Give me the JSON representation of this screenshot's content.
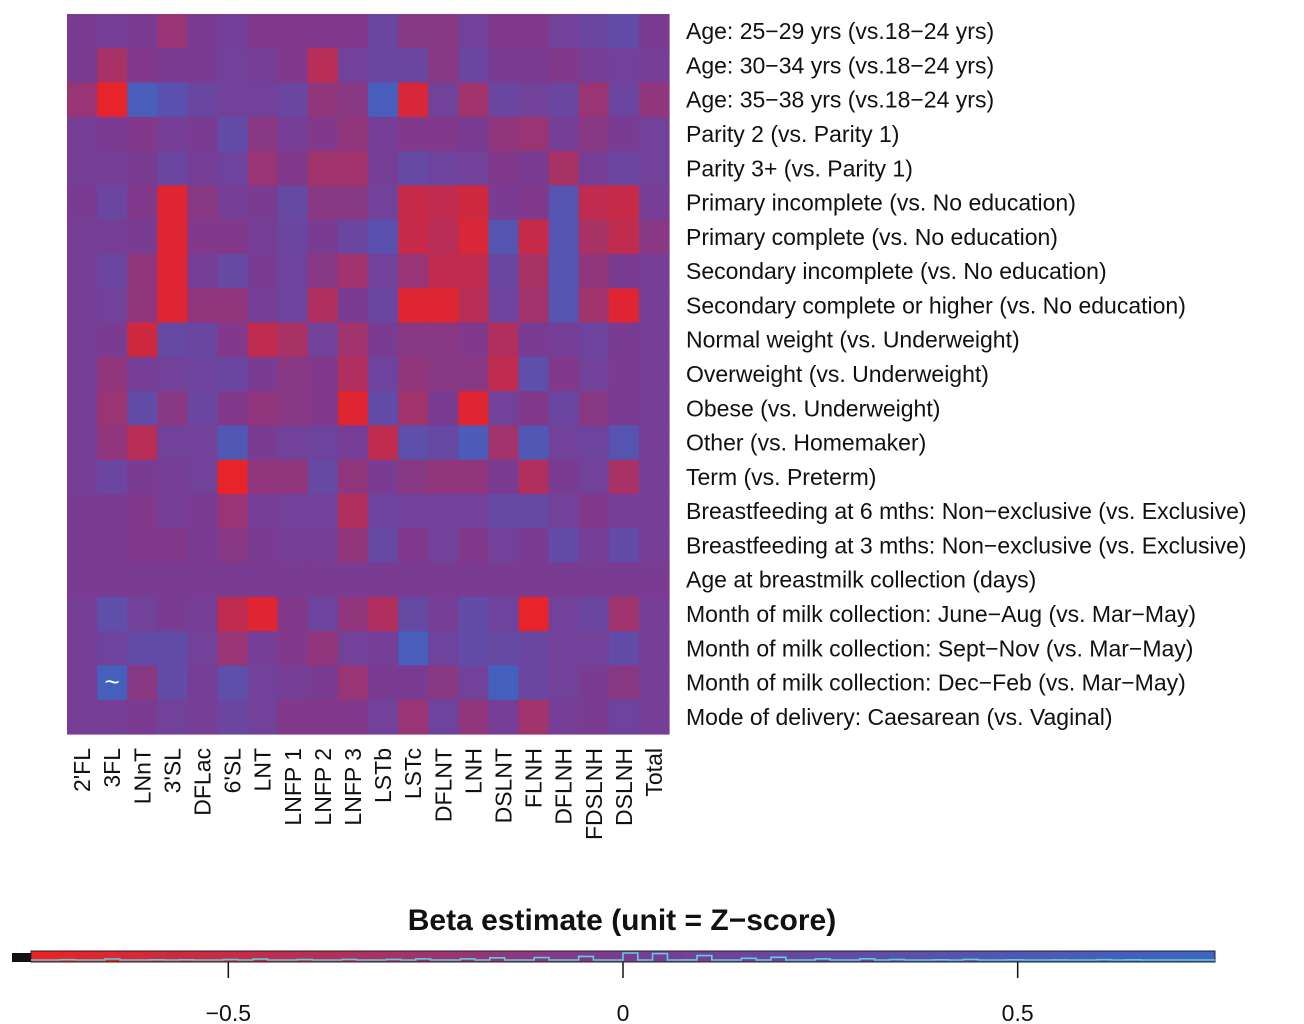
{
  "chart_data": {
    "type": "heatmap",
    "title": "",
    "xlabel": "",
    "ylabel": "",
    "columns": [
      "2'FL",
      "3FL",
      "LNnT",
      "3'SL",
      "DFLac",
      "6'SL",
      "LNT",
      "LNFP 1",
      "LNFP 2",
      "LNFP 3",
      "LSTb",
      "LSTc",
      "DFLNT",
      "LNH",
      "DSLNT",
      "FLNH",
      "DFLNH",
      "FDSLNH",
      "DSLNH",
      "Total"
    ],
    "rows": [
      "Age: 25−29 yrs (vs.18−24 yrs)",
      "Age: 30−34 yrs (vs.18−24 yrs)",
      "Age: 35−38 yrs (vs.18−24 yrs)",
      "Parity 2 (vs. Parity 1)",
      "Parity 3+ (vs. Parity 1)",
      "Primary incomplete (vs. No education)",
      "Primary complete (vs. No education)",
      "Secondary incomplete (vs. No education)",
      "Secondary complete or higher (vs. No education)",
      "Normal weight (vs. Underweight)",
      "Overweight (vs. Underweight)",
      "Obese (vs. Underweight)",
      "Other (vs. Homemaker)",
      "Term (vs. Preterm)",
      "Breastfeeding at 6 mths: Non−exclusive (vs. Exclusive)",
      "Breastfeeding at 3 mths: Non−exclusive (vs. Exclusive)",
      "Age at breastmilk collection (days)",
      "Month of milk collection: June−Aug (vs. Mar−May)",
      "Month of milk collection: Sept−Nov (vs. Mar−May)",
      "Month of milk collection: Dec−Feb (vs. Mar−May)",
      "Mode of delivery: Caesarean (vs. Vaginal)"
    ],
    "values": [
      [
        0.0,
        0.05,
        0.0,
        -0.2,
        0.0,
        0.08,
        -0.05,
        -0.05,
        -0.05,
        -0.05,
        0.2,
        -0.1,
        -0.1,
        0.1,
        -0.05,
        -0.05,
        0.1,
        0.2,
        0.3,
        0.0
      ],
      [
        0.0,
        -0.3,
        -0.05,
        0.0,
        0.0,
        0.1,
        0.05,
        -0.05,
        -0.4,
        0.1,
        0.2,
        0.2,
        -0.1,
        0.2,
        0.0,
        0.0,
        -0.05,
        0.05,
        0.1,
        0.05
      ],
      [
        -0.2,
        -0.7,
        0.6,
        0.4,
        0.2,
        0.1,
        0.1,
        0.2,
        -0.15,
        -0.1,
        0.6,
        -0.6,
        0.1,
        -0.25,
        0.2,
        0.1,
        0.2,
        -0.2,
        0.2,
        -0.15
      ],
      [
        0.05,
        0.0,
        -0.05,
        0.05,
        0.0,
        0.3,
        -0.1,
        0.05,
        -0.05,
        -0.15,
        0.05,
        -0.05,
        -0.05,
        0.0,
        -0.15,
        -0.2,
        0.05,
        -0.1,
        0.0,
        0.1
      ],
      [
        0.05,
        0.05,
        0.0,
        0.2,
        0.05,
        0.15,
        -0.2,
        -0.05,
        -0.25,
        -0.25,
        0.05,
        0.25,
        0.15,
        0.1,
        -0.05,
        0.0,
        -0.3,
        0.05,
        0.2,
        0.1
      ],
      [
        0.0,
        0.2,
        -0.05,
        -0.65,
        -0.1,
        0.05,
        0.0,
        0.25,
        -0.1,
        -0.1,
        0.1,
        -0.5,
        -0.45,
        -0.55,
        0.0,
        -0.05,
        0.45,
        -0.45,
        -0.5,
        0.05
      ],
      [
        0.05,
        0.05,
        0.0,
        -0.65,
        -0.05,
        -0.05,
        0.05,
        0.2,
        0.0,
        0.2,
        0.4,
        -0.5,
        -0.4,
        -0.6,
        0.45,
        -0.5,
        0.45,
        -0.3,
        -0.45,
        -0.1
      ],
      [
        0.05,
        0.2,
        -0.15,
        -0.65,
        0.05,
        0.25,
        0.0,
        0.15,
        -0.1,
        -0.25,
        0.1,
        -0.2,
        -0.45,
        -0.45,
        0.2,
        -0.3,
        0.45,
        -0.15,
        0.0,
        0.05
      ],
      [
        0.05,
        0.1,
        -0.15,
        -0.65,
        -0.15,
        -0.15,
        0.05,
        0.15,
        -0.35,
        0.0,
        0.2,
        -0.65,
        -0.65,
        -0.4,
        0.15,
        -0.25,
        0.45,
        -0.25,
        -0.65,
        0.05
      ],
      [
        0.05,
        0.0,
        -0.55,
        0.25,
        0.2,
        -0.05,
        -0.45,
        -0.3,
        0.1,
        -0.25,
        0.0,
        -0.1,
        -0.1,
        -0.05,
        -0.35,
        0.0,
        0.05,
        0.15,
        0.0,
        0.05
      ],
      [
        0.05,
        -0.15,
        0.05,
        0.1,
        0.15,
        0.2,
        0.0,
        -0.1,
        -0.05,
        -0.35,
        0.15,
        -0.15,
        -0.1,
        -0.1,
        -0.45,
        0.35,
        -0.05,
        0.1,
        0.0,
        0.05
      ],
      [
        0.05,
        -0.2,
        0.3,
        -0.1,
        0.2,
        -0.05,
        -0.15,
        -0.1,
        -0.05,
        -0.65,
        0.3,
        -0.25,
        0.0,
        -0.65,
        0.1,
        -0.05,
        0.2,
        -0.1,
        0.0,
        0.05
      ],
      [
        0.05,
        -0.15,
        -0.4,
        0.1,
        0.1,
        0.5,
        0.0,
        0.1,
        0.15,
        0.05,
        -0.45,
        0.35,
        0.25,
        0.55,
        -0.25,
        0.5,
        0.1,
        0.15,
        0.45,
        0.05
      ],
      [
        0.05,
        0.2,
        0.0,
        0.05,
        0.1,
        -0.7,
        -0.15,
        -0.15,
        0.25,
        -0.15,
        0.0,
        -0.1,
        -0.15,
        -0.15,
        0.0,
        -0.35,
        0.0,
        0.1,
        -0.3,
        0.05
      ],
      [
        0.0,
        0.0,
        -0.05,
        0.05,
        0.0,
        -0.2,
        0.05,
        0.1,
        0.1,
        -0.35,
        0.15,
        0.1,
        0.1,
        0.1,
        0.25,
        0.25,
        0.1,
        -0.05,
        0.05,
        0.05
      ],
      [
        0.0,
        0.0,
        -0.05,
        -0.05,
        0.0,
        -0.1,
        0.0,
        0.05,
        0.05,
        -0.15,
        0.25,
        -0.05,
        0.1,
        -0.05,
        0.1,
        0.0,
        0.3,
        0.05,
        0.3,
        0.05
      ],
      [
        0.0,
        0.0,
        0.0,
        0.0,
        0.0,
        0.0,
        0.0,
        0.0,
        0.0,
        0.0,
        0.0,
        0.0,
        0.0,
        0.0,
        0.0,
        0.0,
        0.0,
        0.0,
        0.0,
        0.0
      ],
      [
        0.05,
        0.35,
        0.1,
        0.0,
        0.05,
        -0.45,
        -0.65,
        -0.05,
        0.15,
        -0.15,
        -0.35,
        0.25,
        0.05,
        0.3,
        0.15,
        -0.7,
        0.1,
        0.2,
        -0.25,
        0.05
      ],
      [
        0.05,
        0.15,
        0.3,
        0.3,
        0.1,
        -0.2,
        0.05,
        -0.05,
        -0.15,
        0.1,
        0.05,
        0.6,
        0.15,
        0.3,
        0.25,
        0.2,
        0.1,
        0.1,
        0.3,
        0.05
      ],
      [
        0.05,
        0.65,
        -0.1,
        0.3,
        0.05,
        0.35,
        0.1,
        0.05,
        0.0,
        -0.2,
        0.0,
        0.0,
        -0.1,
        0.1,
        0.65,
        0.2,
        0.1,
        0.0,
        -0.1,
        0.05
      ],
      [
        0.05,
        0.05,
        0.0,
        0.1,
        0.05,
        0.2,
        0.1,
        -0.05,
        -0.05,
        -0.05,
        0.1,
        -0.2,
        0.15,
        -0.15,
        0.05,
        -0.25,
        0.05,
        0.0,
        0.15,
        0.05
      ]
    ],
    "annotations": [
      {
        "row": 19,
        "col": 1,
        "text": "~"
      }
    ],
    "colorbar": {
      "title": "Beta estimate (unit = Z−score)",
      "ticks": [
        -0.5,
        0,
        0.5
      ],
      "tick_labels": [
        "−0.5",
        "0",
        "0.5"
      ],
      "range": [
        -0.75,
        0.75
      ],
      "low_color": "#ee2222",
      "mid_color": "#7a3b93",
      "high_color": "#3d65c4",
      "histogram_color": "#5fd0d8"
    }
  }
}
